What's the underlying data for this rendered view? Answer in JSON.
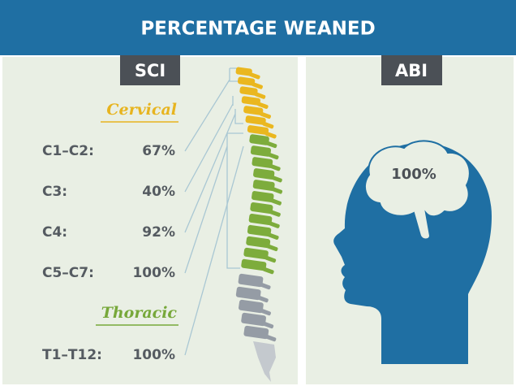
{
  "header": {
    "title": "PERCENTAGE WEANED"
  },
  "sci": {
    "label": "SCI",
    "cervical": {
      "heading": "Cervical",
      "rows": [
        {
          "level": "C1–C2:",
          "value": "67%"
        },
        {
          "level": "C3:",
          "value": "40%"
        },
        {
          "level": "C4:",
          "value": "92%"
        },
        {
          "level": "C5–C7:",
          "value": "100%"
        }
      ]
    },
    "thoracic": {
      "heading": "Thoracic",
      "rows": [
        {
          "level": "T1–T12:",
          "value": "100%"
        }
      ]
    }
  },
  "abi": {
    "label": "ABI",
    "value": "100%"
  }
}
